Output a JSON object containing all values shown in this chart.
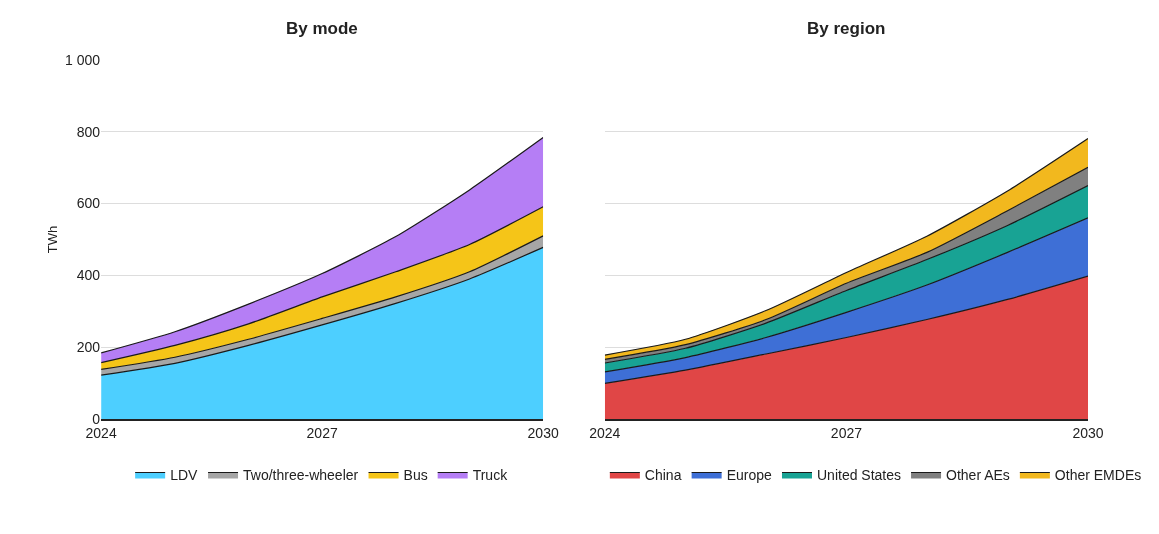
{
  "chart_data": [
    {
      "type": "area",
      "title": "By mode",
      "ylabel": "TWh",
      "stacked": true,
      "x": [
        "2024",
        "2025",
        "2026",
        "2027",
        "2028",
        "2029",
        "2030"
      ],
      "xlim": [
        "2024",
        "2030"
      ],
      "xticks": [
        {
          "value": "2024",
          "label": "2024"
        },
        {
          "value": "2027",
          "label": "2027"
        },
        {
          "value": "2030",
          "label": "2030"
        }
      ],
      "ylim": [
        0,
        1000
      ],
      "yticks": [
        0,
        200,
        400,
        600,
        800,
        {
          "value": 1000,
          "label": "1 000"
        }
      ],
      "grid": "y",
      "legend": "bottom",
      "series": [
        {
          "name": "LDV",
          "color": "#4dcfff",
          "values": [
            122,
            155,
            205,
            262,
            322,
            390,
            478
          ]
        },
        {
          "name": "Two/three-wheeler",
          "color": "#a6a6a6",
          "values": [
            16,
            17,
            17,
            18,
            18,
            20,
            32
          ]
        },
        {
          "name": "Bus",
          "color": "#f5c518",
          "values": [
            19,
            33,
            43,
            60,
            70,
            76,
            81
          ]
        },
        {
          "name": "Truck",
          "color": "#b57ef5",
          "values": [
            27,
            38,
            55,
            65,
            98,
            152,
            193
          ]
        }
      ]
    },
    {
      "type": "area",
      "title": "By region",
      "stacked": true,
      "x": [
        "2024",
        "2025",
        "2026",
        "2027",
        "2028",
        "2029",
        "2030"
      ],
      "xlim": [
        "2024",
        "2030"
      ],
      "xticks": [
        {
          "value": "2024",
          "label": "2024"
        },
        {
          "value": "2027",
          "label": "2027"
        },
        {
          "value": "2030",
          "label": "2030"
        }
      ],
      "ylim": [
        0,
        1000
      ],
      "yticks": [
        0,
        200,
        400,
        600,
        800,
        1000
      ],
      "tick_labels": "x",
      "grid": "y",
      "legend": "bottom",
      "series": [
        {
          "name": "China",
          "color": "#e04646",
          "values": [
            99,
            136,
            181,
            227,
            277,
            333,
            398
          ]
        },
        {
          "name": "Europe",
          "color": "#3e6fd6",
          "values": [
            32,
            35,
            46,
            70,
            96,
            131,
            162
          ]
        },
        {
          "name": "United States",
          "color": "#18a394",
          "values": [
            25,
            26,
            40,
            61,
            71,
            75,
            90
          ]
        },
        {
          "name": "Other AEs",
          "color": "#808080",
          "values": [
            10,
            10,
            10,
            20,
            20,
            41,
            51
          ]
        },
        {
          "name": "Other EMDEs",
          "color": "#f2b81e",
          "values": [
            12,
            15,
            25,
            30,
            45,
            55,
            80
          ]
        }
      ]
    }
  ]
}
